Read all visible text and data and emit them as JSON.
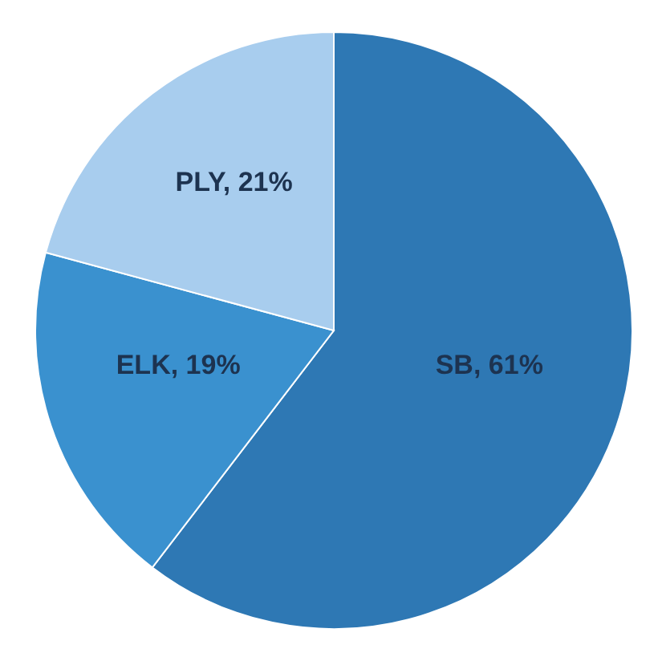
{
  "chart_data": {
    "type": "pie",
    "categories": [
      "SB",
      "ELK",
      "PLY"
    ],
    "values": [
      61,
      19,
      21
    ],
    "colors": [
      "#2e78b4",
      "#3a91cf",
      "#a8cdee"
    ],
    "value_labels": [
      "61%",
      "19%",
      "21%"
    ]
  }
}
